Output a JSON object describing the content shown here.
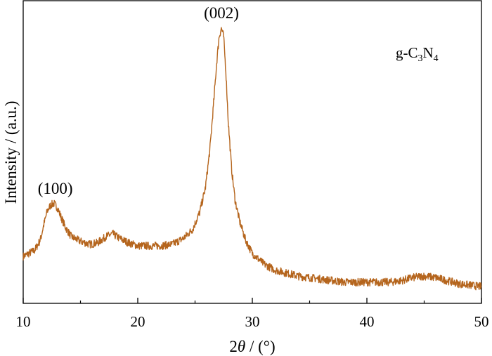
{
  "chart_data": {
    "type": "line",
    "title": "",
    "xlabel_prefix": "2",
    "xlabel_symbol": "θ",
    "xlabel_suffix": " / (°)",
    "ylabel": "Intensity / (a.u.)",
    "xlim": [
      10,
      50
    ],
    "ylim": [
      0,
      100
    ],
    "xticks": [
      10,
      20,
      30,
      40,
      50
    ],
    "xtick_labels": [
      "10",
      "20",
      "30",
      "40",
      "50"
    ],
    "yticks_shown": false,
    "grid": false,
    "legend": {
      "placement": "top-right",
      "text_parts": [
        "g-C",
        "3",
        "N",
        "4"
      ]
    },
    "series": [
      {
        "name": "g-C3N4",
        "color": "#b5651d",
        "x": [
          10,
          10.5,
          11,
          11.5,
          11.8,
          12.1,
          12.4,
          12.7,
          13.0,
          13.3,
          13.7,
          14.2,
          15,
          15.8,
          16.5,
          17.2,
          17.8,
          18.4,
          19.2,
          20,
          21,
          22,
          23,
          24,
          24.8,
          25.4,
          25.9,
          26.3,
          26.6,
          26.9,
          27.1,
          27.3,
          27.5,
          27.7,
          27.9,
          28.2,
          28.5,
          28.9,
          29.4,
          30,
          31,
          32,
          33,
          34,
          35,
          36,
          37,
          38,
          39,
          40,
          41,
          42,
          43,
          44,
          45,
          46,
          47,
          48,
          49,
          50
        ],
        "y": [
          15.5,
          16.5,
          17.5,
          21,
          26,
          30.5,
          32.5,
          33,
          31.5,
          28.5,
          25,
          22,
          20.5,
          19.5,
          20,
          22,
          23,
          21.5,
          20,
          19,
          19,
          19,
          19.5,
          21.5,
          24.5,
          30,
          38,
          51,
          65,
          80,
          88,
          91,
          88,
          76,
          60,
          44,
          34,
          27,
          21,
          16.5,
          13,
          11,
          10,
          9,
          8.5,
          8,
          7.5,
          7,
          7,
          7,
          7,
          7,
          7.5,
          8.5,
          9,
          8.5,
          7.5,
          6.5,
          6,
          5.5
        ]
      }
    ],
    "annotations": [
      {
        "text": "(100)",
        "x": 12.8,
        "y": 33
      },
      {
        "text": "(002)",
        "x": 27.3,
        "y": 91
      }
    ]
  }
}
